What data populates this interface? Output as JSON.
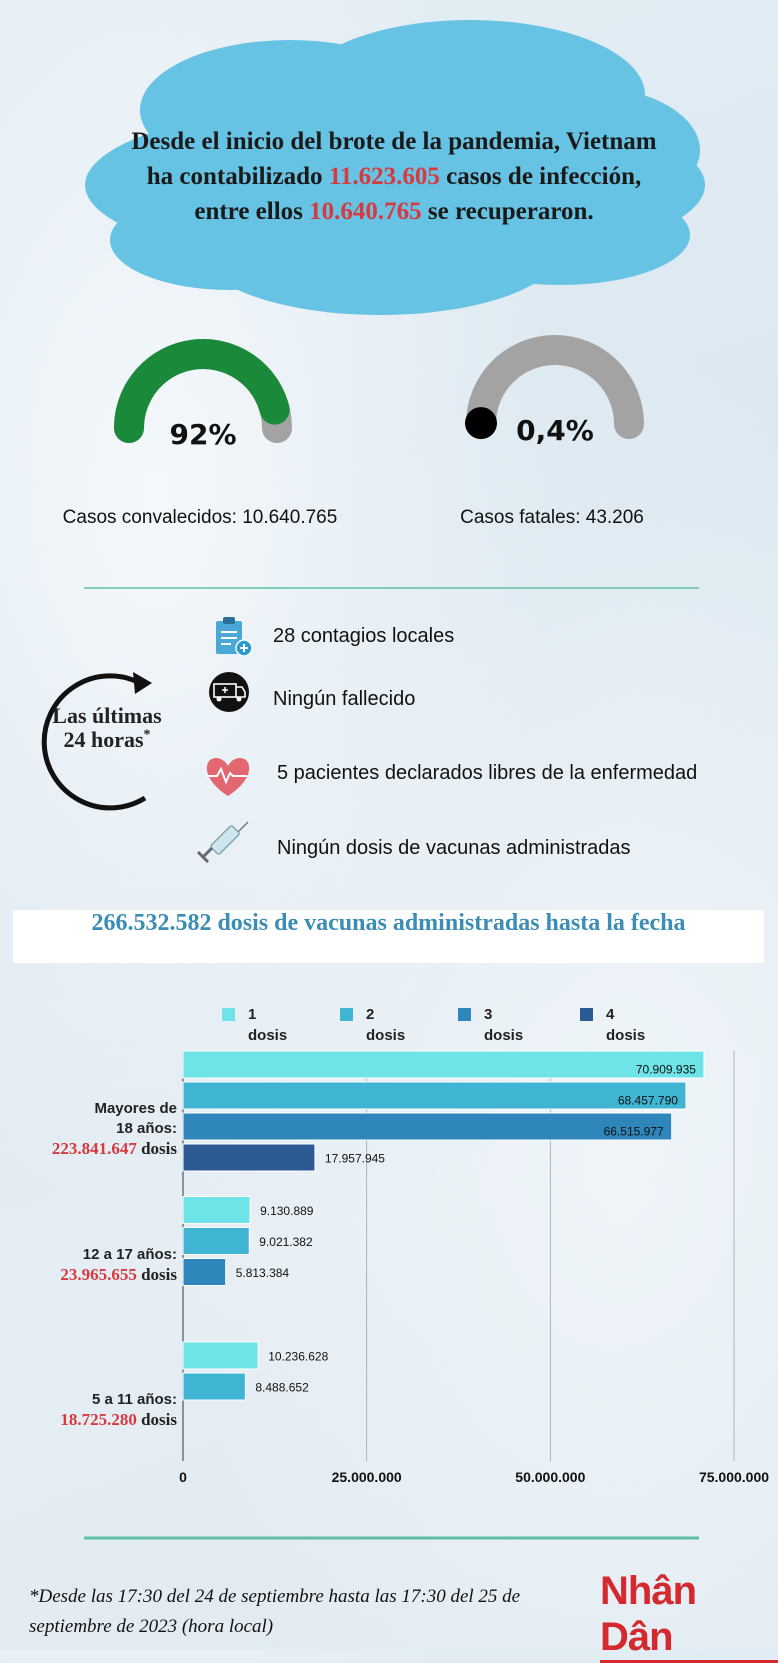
{
  "header": {
    "parts": [
      {
        "text": "Desde el inicio del brote de la pandemia, Vietnam ha contabilizado ",
        "color": "#1a1a1a"
      },
      {
        "text": "11.623.605",
        "color": "#d63a3f"
      },
      {
        "text": " casos de infección, entre ellos ",
        "color": "#1a1a1a"
      },
      {
        "text": "10.640.765",
        "color": "#d63a3f"
      },
      {
        "text": " se recuperaron.",
        "color": "#1a1a1a"
      }
    ]
  },
  "gauges": [
    {
      "value": 92,
      "label": "92%",
      "color": "#1a8a3a",
      "caption": "Casos convalecidos: 10.640.765"
    },
    {
      "value": 0.4,
      "label": "0,4%",
      "color": "#000000",
      "caption": "Casos fatales: 43.206"
    }
  ],
  "last_24h": {
    "title": "Las últimas 24 horas",
    "mark": "*",
    "items": [
      "28 contagios locales",
      "Ningún fallecido",
      "5 pacientes declarados libres de la enfermedad",
      "Ningún dosis de vacunas administradas"
    ]
  },
  "chart_data": {
    "type": "bar",
    "orientation": "horizontal",
    "title": "266.532.582 dosis de vacunas administradas hasta la fecha",
    "categories": [
      "Mayores de 18 años:",
      "12 a 17 años:",
      "5 a 11 años:"
    ],
    "totals": [
      223841647,
      23965655,
      18725280
    ],
    "total_labels": [
      "223.841.647",
      "23.965.655",
      "18.725.280"
    ],
    "total_unit": "dosis",
    "series": [
      {
        "name": "1 dosis",
        "color": "#6ee3e8",
        "values": [
          70909935,
          9130889,
          10236628
        ],
        "value_labels": [
          "70.909.935",
          "9.130.889",
          "10.236.628"
        ]
      },
      {
        "name": "2 dosis",
        "color": "#3fb5d3",
        "values": [
          68457790,
          9021382,
          8488652
        ],
        "value_labels": [
          "68.457.790",
          "9.021.382",
          "8.488.652"
        ]
      },
      {
        "name": "3 dosis",
        "color": "#2e86bb",
        "values": [
          66515977,
          5813384,
          null
        ],
        "value_labels": [
          "66.515.977",
          "5.813.384",
          null
        ]
      },
      {
        "name": "4 dosis",
        "color": "#2c5a94",
        "values": [
          17957945,
          null,
          null
        ],
        "value_labels": [
          "17.957.945",
          null,
          null
        ]
      }
    ],
    "xlim": [
      0,
      75000000
    ],
    "xticks": [
      0,
      {
        "value": 25000000,
        "label": "25.000.000"
      },
      {
        "value": 50000000,
        "label": "50.000.000"
      },
      {
        "value": 75000000,
        "label": "75.000.000"
      }
    ],
    "grid": true,
    "legend": "top"
  },
  "footnote": "*Desde las 17:30 del 24 de septiembre hasta las 17:30 del 25 de septiembre de 2023 (hora local)",
  "logo": "Nhân Dân"
}
